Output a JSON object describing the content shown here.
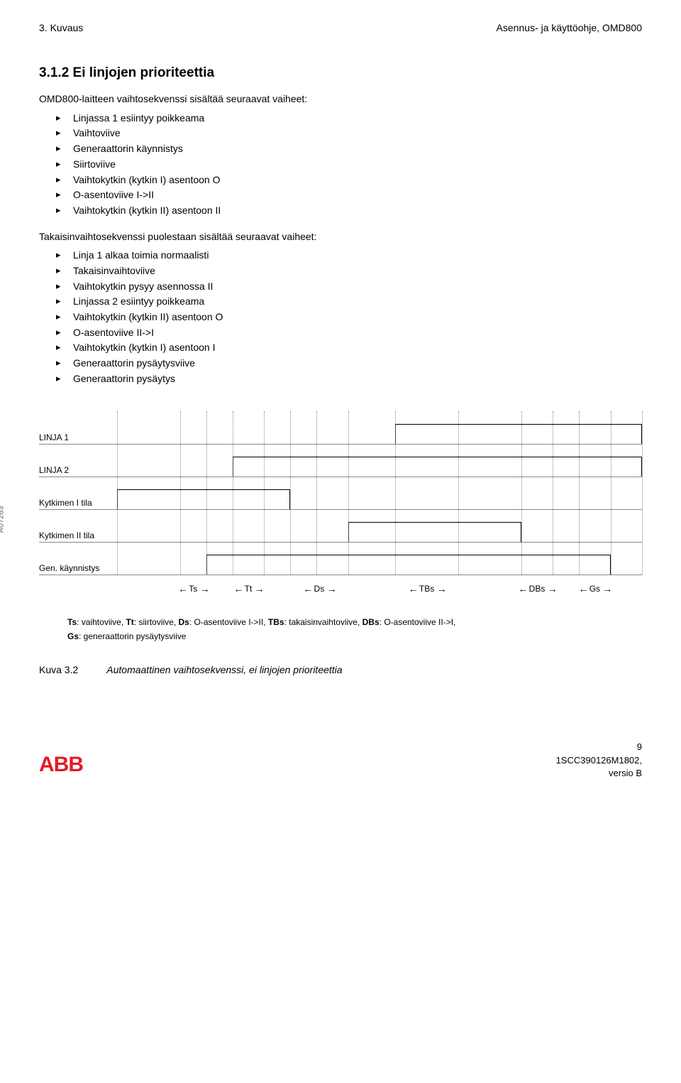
{
  "header": {
    "left": "3. Kuvaus",
    "right": "Asennus- ja käyttöohje, OMD800"
  },
  "section": {
    "heading": "3.1.2 Ei linjojen prioriteettia",
    "intro1": "OMD800-laitteen vaihtosekvenssi sisältää seuraavat vaiheet:",
    "list1": [
      "Linjassa 1 esiintyy poikkeama",
      "Vaihtoviive",
      "Generaattorin käynnistys",
      "Siirtoviive",
      "Vaihtokytkin (kytkin I) asentoon O",
      "O-asentoviive I->II",
      "Vaihtokytkin (kytkin II) asentoon II"
    ],
    "intro2": "Takaisinvaihtosekvenssi puolestaan sisältää seuraavat vaiheet:",
    "list2": [
      "Linja 1 alkaa toimia normaalisti",
      "Takaisinvaihtoviive",
      "Vaihtokytkin pysyy asennossa II",
      "Linjassa 2 esiintyy poikkeama",
      "Vaihtokytkin (kytkin II) asentoon O",
      "O-asentoviive II->I",
      "Vaihtokytkin (kytkin I) asentoon I",
      "Generaattorin pysäytysviive",
      "Generaattorin pysäytys"
    ]
  },
  "diagram": {
    "side_code": "A07263",
    "rows": [
      {
        "label": "LINJA 1",
        "high_left_pct": 53,
        "high_width_pct": 47
      },
      {
        "label": "LINJA 2",
        "high_left_pct": 22,
        "high_width_pct": 78
      },
      {
        "label": "Kytkimen I tila",
        "high_left_pct": 0,
        "high_width_pct": 33
      },
      {
        "label": "Kytkimen II tila",
        "high_left_pct": 44,
        "high_width_pct": 33
      },
      {
        "label": "Gen. käynnistys",
        "high_left_pct": 17,
        "high_width_pct": 77
      }
    ],
    "guides_pct": [
      0,
      12,
      17,
      22,
      28,
      33,
      38,
      44,
      53,
      65,
      77,
      83,
      88,
      94,
      100
    ],
    "arrows": [
      {
        "label": "Ts",
        "left_pct": 12,
        "width_pct": 5
      },
      {
        "label": "Tt",
        "left_pct": 22,
        "width_pct": 6
      },
      {
        "label": "Ds",
        "left_pct": 33,
        "width_pct": 11
      },
      {
        "label": "TBs",
        "left_pct": 53,
        "width_pct": 12
      },
      {
        "label": "DBs",
        "left_pct": 77,
        "width_pct": 6
      },
      {
        "label": "Gs",
        "left_pct": 88,
        "width_pct": 6
      }
    ],
    "legend_line1_parts": [
      {
        "b": "Ts",
        "t": ": vaihtoviive, "
      },
      {
        "b": "Tt",
        "t": ": siirtoviive, "
      },
      {
        "b": "Ds",
        "t": ": O-asentoviive I->II, "
      },
      {
        "b": "TBs",
        "t": ": takaisinvaihtoviive, "
      },
      {
        "b": "DBs",
        "t": ": O-asentoviive II->I,"
      }
    ],
    "legend_line2_parts": [
      {
        "b": "Gs",
        "t": ": generaattorin pysäytysviive"
      }
    ],
    "colors": {
      "guide": "#888888",
      "wave": "#000000"
    }
  },
  "caption": {
    "fig": "Kuva 3.2",
    "text": "Automaattinen vaihtosekvenssi, ei linjojen prioriteettia"
  },
  "footer": {
    "logo_text": "ABB",
    "page_num": "9",
    "doc_num": "1SCC390126M1802,",
    "rev": "versio B"
  }
}
